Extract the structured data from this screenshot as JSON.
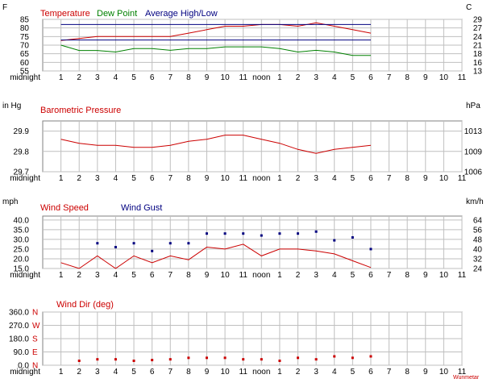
{
  "x_ticks": [
    "midnight",
    "1",
    "2",
    "3",
    "4",
    "5",
    "6",
    "7",
    "8",
    "9",
    "10",
    "11",
    "noon",
    "1",
    "2",
    "3",
    "4",
    "5",
    "6",
    "7",
    "8",
    "9",
    "10",
    "11"
  ],
  "credit": "Wunmetar",
  "colors": {
    "red": "#cc0000",
    "green": "#008000",
    "navy": "#000080",
    "grid": "#bfbfbf"
  },
  "chart_data": [
    {
      "type": "line",
      "unit_left": "F",
      "unit_right": "C",
      "legend": [
        {
          "label": "Temperature",
          "color": "#cc0000"
        },
        {
          "label": "Dew Point",
          "color": "#008000"
        },
        {
          "label": "Average High/Low",
          "color": "#000080"
        }
      ],
      "ylim": [
        55,
        85
      ],
      "y_ticks": [
        "55",
        "60",
        "65",
        "70",
        "75",
        "80",
        "85"
      ],
      "y_tick_values": [
        55,
        60,
        65,
        70,
        75,
        80,
        85
      ],
      "y_ticks_right": [
        "13",
        "16",
        "18",
        "21",
        "24",
        "27",
        "29"
      ],
      "x": [
        1,
        2,
        3,
        4,
        5,
        6,
        7,
        8,
        9,
        10,
        11,
        12,
        13,
        14,
        15,
        16,
        17,
        18
      ],
      "series": [
        {
          "name": "Temperature",
          "color": "#cc0000",
          "values": [
            72.7,
            73.9,
            75.0,
            75.0,
            75.0,
            75.0,
            75.0,
            77.0,
            79.0,
            81.0,
            81.0,
            82.0,
            82.0,
            81.0,
            83.0,
            81.0,
            79.0,
            77.0
          ]
        },
        {
          "name": "Dew Point",
          "color": "#008000",
          "values": [
            70.0,
            66.9,
            66.9,
            66.0,
            68.0,
            68.0,
            67.0,
            68.0,
            68.0,
            69.0,
            69.0,
            69.0,
            68.0,
            66.0,
            67.0,
            66.0,
            64.0,
            64.0
          ]
        },
        {
          "name": "Average High",
          "color": "#000080",
          "values": [
            82,
            82,
            82,
            82,
            82,
            82,
            82,
            82,
            82,
            82,
            82,
            82,
            82,
            82,
            82,
            82,
            82,
            82
          ]
        },
        {
          "name": "Average Low",
          "color": "#000080",
          "values": [
            73,
            73,
            73,
            73,
            73,
            73,
            73,
            73,
            73,
            73,
            73,
            73,
            73,
            73,
            73,
            73,
            73,
            73
          ]
        }
      ]
    },
    {
      "type": "line",
      "unit_left": "in Hg",
      "unit_right": "hPa",
      "legend": [
        {
          "label": "Barometric Pressure",
          "color": "#cc0000"
        }
      ],
      "ylim": [
        29.7,
        29.95
      ],
      "y_ticks": [
        "29.7",
        "29.8",
        "29.9"
      ],
      "y_tick_values": [
        29.7,
        29.8,
        29.9
      ],
      "y_ticks_right": [
        "1006",
        "1009",
        "1013"
      ],
      "x": [
        1,
        2,
        3,
        4,
        5,
        6,
        7,
        8,
        9,
        10,
        11,
        12,
        13,
        14,
        15,
        16,
        17,
        18
      ],
      "series": [
        {
          "name": "Barometric Pressure",
          "color": "#cc0000",
          "values": [
            29.86,
            29.84,
            29.83,
            29.83,
            29.82,
            29.82,
            29.83,
            29.85,
            29.86,
            29.88,
            29.88,
            29.86,
            29.84,
            29.81,
            29.79,
            29.81,
            29.82,
            29.83
          ]
        }
      ]
    },
    {
      "type": "line",
      "unit_left": "mph",
      "unit_right": "km/h",
      "legend": [
        {
          "label": "Wind Speed",
          "color": "#cc0000"
        },
        {
          "label": "Wind Gust",
          "color": "#000080"
        }
      ],
      "ylim": [
        15,
        42
      ],
      "y_ticks": [
        "15.0",
        "20.0",
        "25.0",
        "30.0",
        "35.0",
        "40.0"
      ],
      "y_tick_values": [
        15,
        20,
        25,
        30,
        35,
        40
      ],
      "y_ticks_right": [
        "24",
        "32",
        "40",
        "48",
        "56",
        "64"
      ],
      "x": [
        1,
        2,
        3,
        4,
        5,
        6,
        7,
        8,
        9,
        10,
        11,
        12,
        13,
        14,
        15,
        16,
        17,
        18
      ],
      "series": [
        {
          "name": "Wind Speed",
          "color": "#cc0000",
          "values": [
            18,
            15,
            21.5,
            15,
            21.5,
            18,
            21.5,
            19.5,
            26,
            25,
            27.5,
            21.5,
            25,
            25,
            24,
            22.5,
            19,
            15.5
          ]
        },
        {
          "name": "Wind Gust",
          "color": "#000080",
          "values": [
            null,
            null,
            28,
            26,
            28,
            24,
            28,
            28,
            33,
            33,
            33,
            32,
            33,
            33,
            34,
            29.5,
            31,
            25
          ]
        }
      ]
    },
    {
      "type": "scatter",
      "legend": [
        {
          "label": "Wind Dir (deg)",
          "color": "#cc0000"
        }
      ],
      "ylim": [
        0,
        360
      ],
      "y_ticks": [
        "0.0",
        "90.0",
        "180.0",
        "270.0",
        "360.0"
      ],
      "y_tick_values": [
        0,
        90,
        180,
        270,
        360
      ],
      "compass": [
        "N",
        "E",
        "S",
        "W",
        "N"
      ],
      "x": [
        2,
        3,
        4,
        5,
        6,
        7,
        8,
        9,
        10,
        11,
        12,
        13,
        14,
        15,
        16,
        17,
        18
      ],
      "series": [
        {
          "name": "Wind Dir (deg)",
          "color": "#cc0000",
          "values": [
            30,
            40,
            40,
            30,
            35,
            40,
            50,
            50,
            50,
            40,
            40,
            30,
            50,
            40,
            60,
            50,
            60
          ]
        }
      ]
    }
  ]
}
